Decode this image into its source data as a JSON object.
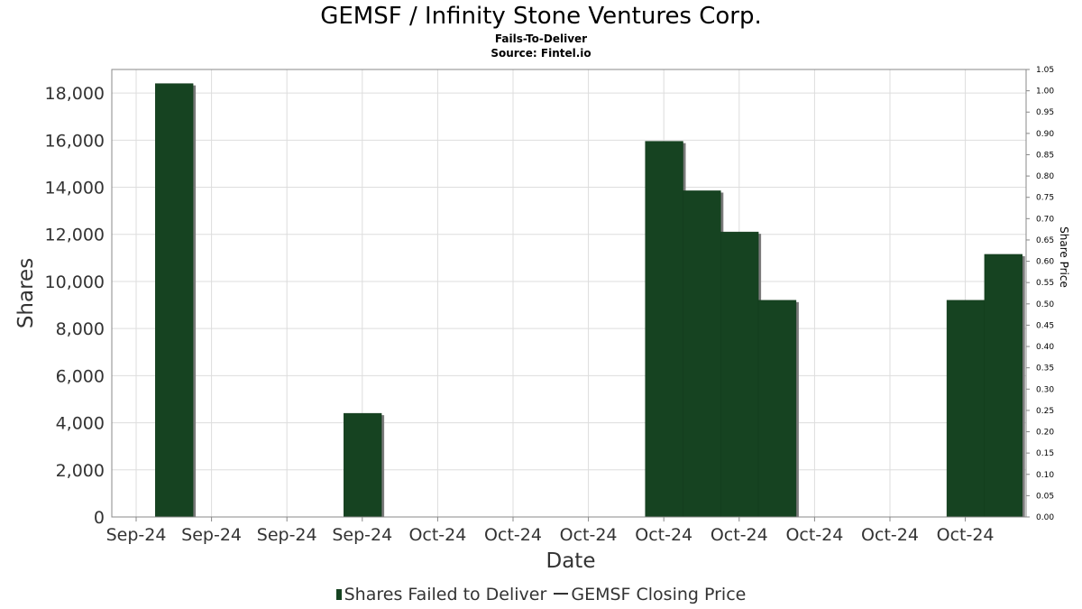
{
  "header": {
    "title": "GEMSF / Infinity Stone Ventures Corp.",
    "subtitle": "Fails-To-Deliver",
    "source": "Source: Fintel.io"
  },
  "legend": {
    "bar_label": "Shares Failed to Deliver",
    "line_label": "GEMSF Closing Price"
  },
  "colors": {
    "bar": "#164321",
    "bar_shadow": "#7a7a7a",
    "grid": "#dddddd",
    "axis": "#888888"
  },
  "chart_data": {
    "type": "bar",
    "title": "GEMSF / Infinity Stone Ventures Corp.",
    "subtitle": "Fails-To-Deliver",
    "xlabel": "Date",
    "ylabel": "Shares",
    "y2label": "Share Price",
    "ylim": [
      0,
      19000
    ],
    "y2lim": [
      0,
      1.05
    ],
    "y_ticks": [
      "0",
      "2,000",
      "4,000",
      "6,000",
      "8,000",
      "10,000",
      "12,000",
      "14,000",
      "16,000",
      "18,000"
    ],
    "y2_ticks": [
      "0.00",
      "0.05",
      "0.10",
      "0.15",
      "0.20",
      "0.25",
      "0.30",
      "0.35",
      "0.40",
      "0.45",
      "0.50",
      "0.55",
      "0.60",
      "0.65",
      "0.70",
      "0.75",
      "0.80",
      "0.85",
      "0.90",
      "0.95",
      "1.00",
      "1.05"
    ],
    "x_ticks": [
      "Sep-24",
      "Sep-24",
      "Sep-24",
      "Sep-24",
      "Oct-24",
      "Oct-24",
      "Oct-24",
      "Oct-24",
      "Oct-24",
      "Oct-24",
      "Oct-24",
      "Oct-24"
    ],
    "grid": true,
    "legend_position": "bottom",
    "series": [
      {
        "name": "Shares Failed to Deliver",
        "values": [
          0,
          18400,
          0,
          0,
          0,
          0,
          4400,
          0,
          0,
          0,
          0,
          0,
          0,
          0,
          15950,
          13850,
          12100,
          9200,
          0,
          0,
          0,
          0,
          9200,
          11150
        ]
      },
      {
        "name": "GEMSF Closing Price",
        "values": []
      }
    ]
  }
}
